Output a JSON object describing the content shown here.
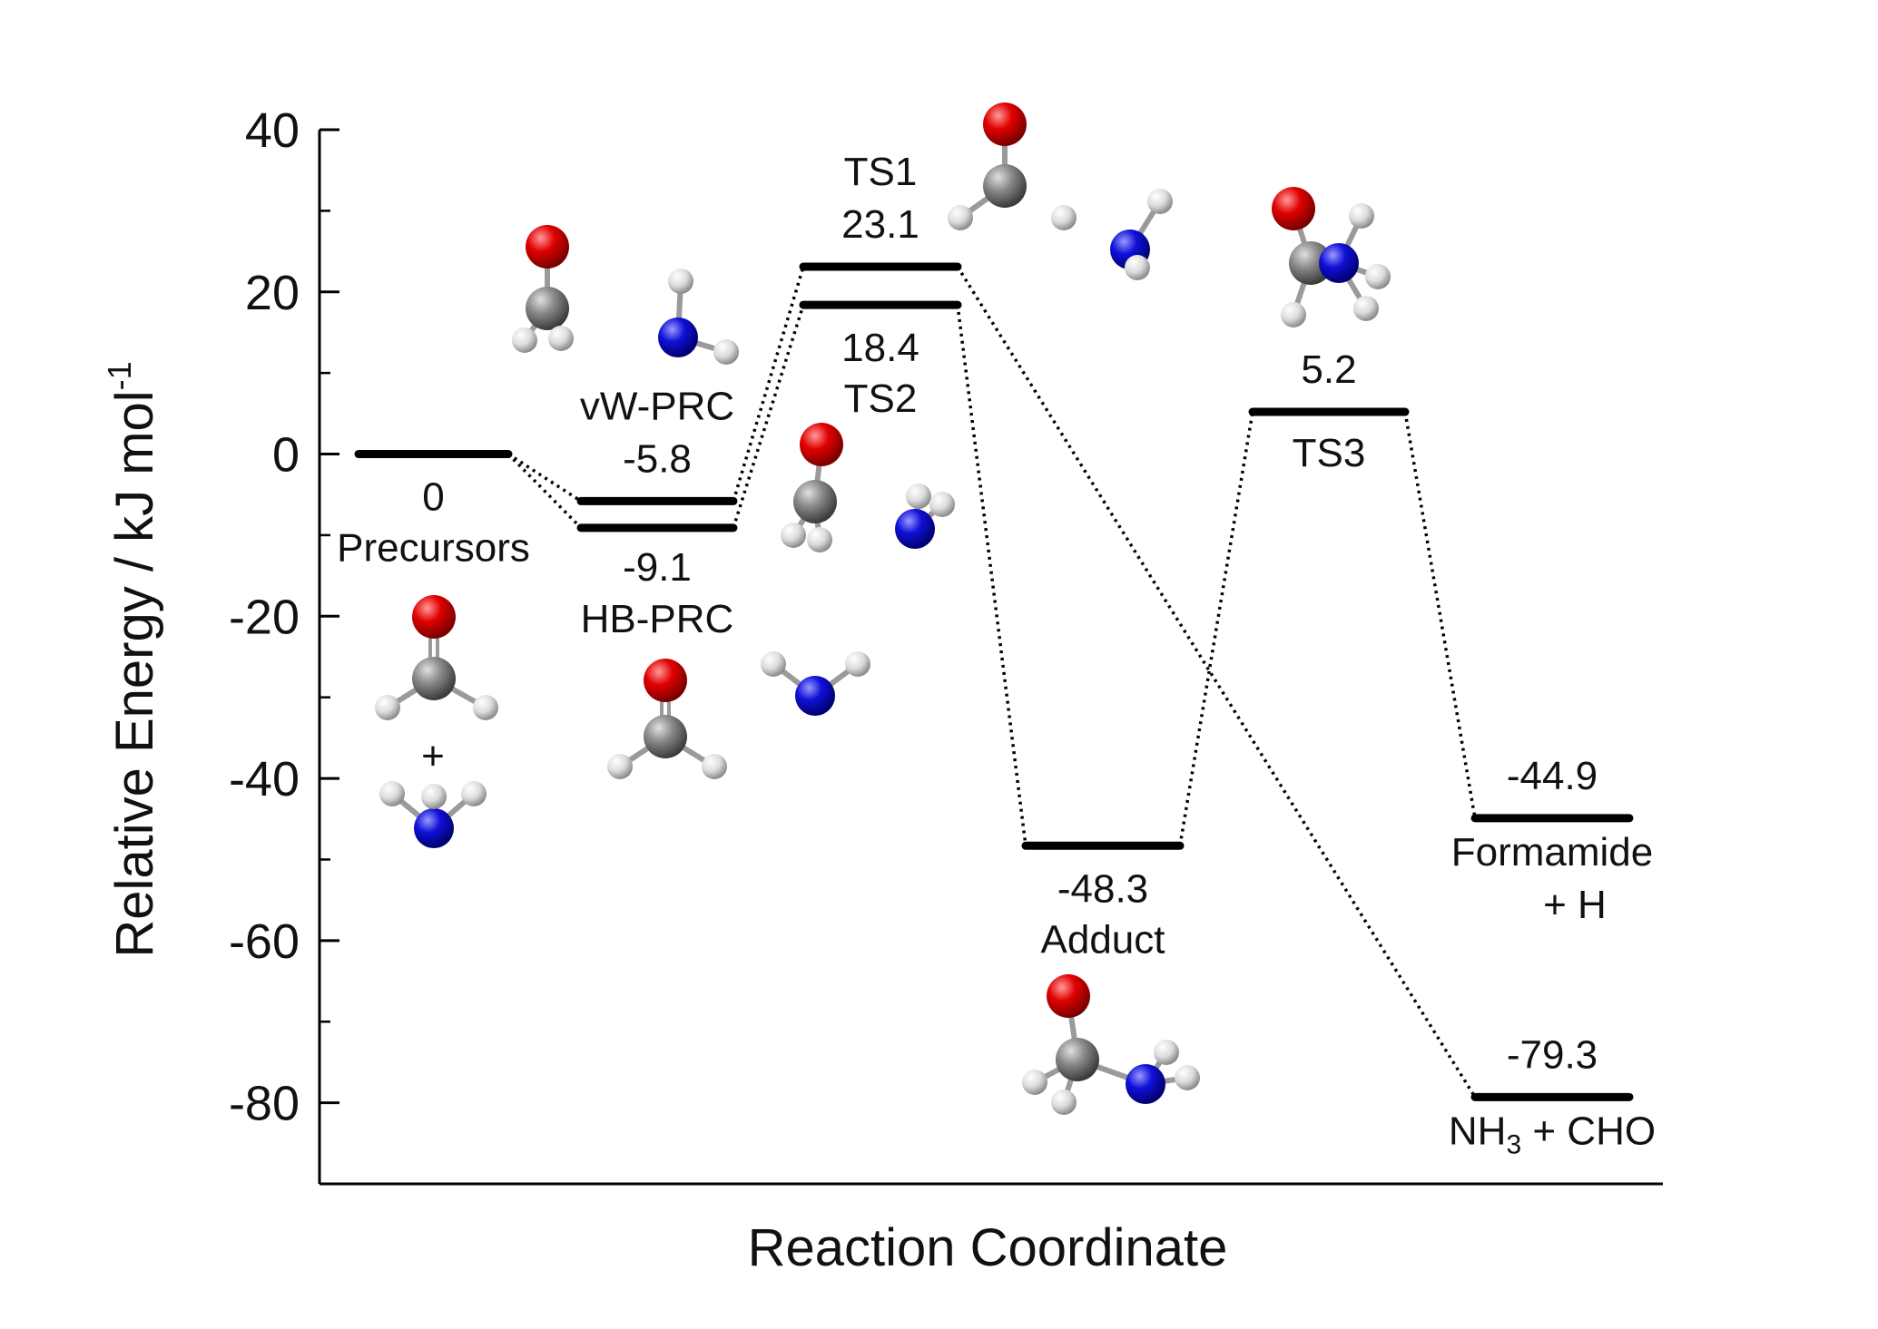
{
  "chart_data": {
    "type": "energy-level-diagram",
    "ylabel": "Relative Energy / kJ mol",
    "ylabel_sup": "-1",
    "xlabel": "Reaction Coordinate",
    "ylim": [
      -90,
      40
    ],
    "yticks": [
      {
        "value": 40,
        "label": "40"
      },
      {
        "value": 20,
        "label": "20"
      },
      {
        "value": 0,
        "label": "0"
      },
      {
        "value": -20,
        "label": "-20"
      },
      {
        "value": -40,
        "label": "-40"
      },
      {
        "value": -60,
        "label": "-60"
      },
      {
        "value": -80,
        "label": "-80"
      }
    ],
    "levels": [
      {
        "id": "precursors",
        "pos": 1,
        "energy": 0,
        "value_label": "0",
        "name_label": "Precursors"
      },
      {
        "id": "vw-prc",
        "pos": 2,
        "energy": -5.8,
        "value_label": "-5.8",
        "name_label": "vW-PRC"
      },
      {
        "id": "hb-prc",
        "pos": 2,
        "energy": -9.1,
        "value_label": "-9.1",
        "name_label": "HB-PRC"
      },
      {
        "id": "ts1",
        "pos": 3,
        "energy": 23.1,
        "value_label": "23.1",
        "name_label": "TS1"
      },
      {
        "id": "ts2",
        "pos": 3,
        "energy": 18.4,
        "value_label": "18.4",
        "name_label": "TS2"
      },
      {
        "id": "adduct",
        "pos": 4,
        "energy": -48.3,
        "value_label": "-48.3",
        "name_label": "Adduct"
      },
      {
        "id": "ts3",
        "pos": 5,
        "energy": 5.2,
        "value_label": "5.2",
        "name_label": "TS3"
      },
      {
        "id": "formamide",
        "pos": 6,
        "energy": -44.9,
        "value_label": "-44.9",
        "name_label": "Formamide",
        "name_label_2": "+ H"
      },
      {
        "id": "nh3-cho",
        "pos": 6,
        "energy": -79.3,
        "value_label": "-79.3",
        "name_label": "NH",
        "name_sub": "3",
        "name_tail": " + CHO"
      }
    ],
    "connections": [
      [
        "precursors",
        "vw-prc"
      ],
      [
        "precursors",
        "hb-prc"
      ],
      [
        "vw-prc",
        "ts1"
      ],
      [
        "hb-prc",
        "ts2"
      ],
      [
        "ts2",
        "adduct"
      ],
      [
        "ts1",
        "nh3-cho"
      ],
      [
        "adduct",
        "ts3"
      ],
      [
        "ts3",
        "formamide"
      ]
    ],
    "plus_sign": "+",
    "atom_colors": {
      "O": "#d40000",
      "C": "#7a7a7a",
      "N": "#1a1acc",
      "H": "#e6e6e6"
    }
  }
}
